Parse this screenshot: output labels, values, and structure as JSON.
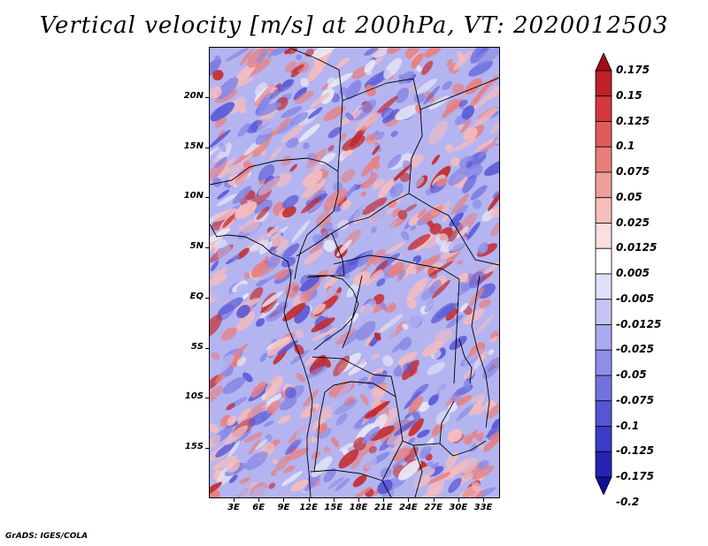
{
  "title": "Vertical velocity [m/s] at 200hPa, VT: 2020012503",
  "credit": "GrADS: IGES/COLA",
  "axes": {
    "lat_labels": [
      "20N",
      "15N",
      "10N",
      "5N",
      "EQ",
      "5S",
      "10S",
      "15S"
    ],
    "lon_labels": [
      "3E",
      "6E",
      "9E",
      "12E",
      "15E",
      "18E",
      "21E",
      "24E",
      "27E",
      "30E",
      "33E"
    ]
  },
  "colorbar": {
    "labels": [
      "0.175",
      "0.15",
      "0.125",
      "0.1",
      "0.075",
      "0.05",
      "0.025",
      "0.0125",
      "0.005",
      "-0.005",
      "-0.0125",
      "-0.025",
      "-0.05",
      "-0.075",
      "-0.1",
      "-0.125",
      "-0.175",
      "-0.2"
    ],
    "colors": [
      "#a40c16",
      "#c02028",
      "#d2393d",
      "#de5d5b",
      "#e87e7a",
      "#f09e9b",
      "#f6bebc",
      "#fbdedd",
      "#ffffff",
      "#e0e0fb",
      "#c5c5f5",
      "#aaaaef",
      "#8e8ee8",
      "#7272df",
      "#5656d4",
      "#3c3cc6",
      "#2424b2",
      "#120f9a"
    ]
  },
  "field_colors": {
    "ocean": "#e8e8f6",
    "neg_strong": "#5a5ad8",
    "neg": "#8888e6",
    "neg_light": "#b4b4f0",
    "pos_light": "#f6bcbc",
    "pos": "#e88080",
    "pos_strong": "#c42a2a",
    "border": "#000000"
  }
}
